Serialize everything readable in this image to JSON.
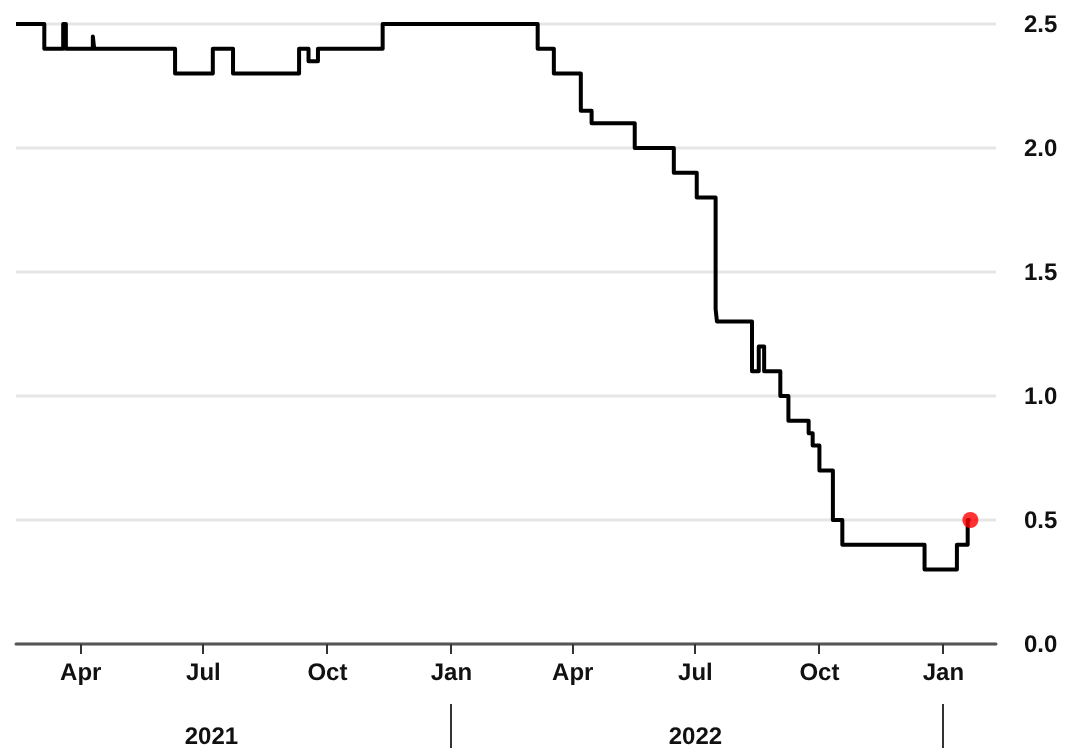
{
  "chart_data": {
    "type": "step",
    "series": [
      {
        "color": "#000000",
        "x": [
          "2021-02-12",
          "2021-03-05",
          "2021-03-19",
          "2021-03-21",
          "2021-04-10",
          "2021-04-11",
          "2021-06-10",
          "2021-07-08",
          "2021-07-23",
          "2021-09-10",
          "2021-09-17",
          "2021-09-24",
          "2021-11-11",
          "2022-03-06",
          "2022-03-18",
          "2022-04-07",
          "2022-04-15",
          "2022-05-17",
          "2022-06-15",
          "2022-07-02",
          "2022-07-16",
          "2022-07-17",
          "2022-08-12",
          "2022-08-17",
          "2022-08-21",
          "2022-09-02",
          "2022-09-08",
          "2022-09-23",
          "2022-09-26",
          "2022-10-01",
          "2022-10-02",
          "2022-10-11",
          "2022-10-14",
          "2022-10-18",
          "2022-12-18",
          "2023-01-11",
          "2023-01-19",
          "2023-01-21"
        ],
        "values": [
          2.5,
          2.4,
          2.5,
          2.4,
          2.45,
          2.4,
          2.3,
          2.4,
          2.3,
          2.4,
          2.35,
          2.4,
          2.5,
          2.4,
          2.3,
          2.15,
          2.1,
          2.0,
          1.9,
          1.8,
          1.35,
          1.3,
          1.1,
          1.2,
          1.1,
          1.0,
          0.9,
          0.85,
          0.8,
          0.7,
          0.7,
          0.5,
          0.5,
          0.4,
          0.3,
          0.4,
          0.5,
          0.5
        ]
      },
      {
        "type": "scatter",
        "color": "#ff0000",
        "marker": "circle",
        "x": [
          "2023-01-21"
        ],
        "values": [
          0.5
        ]
      }
    ],
    "marker": "none",
    "xlim": [
      "2021-02-12",
      "2023-02-09"
    ],
    "xticks": [
      {
        "value": "2021-04-01",
        "label": "Apr"
      },
      {
        "value": "2021-07-01",
        "label": "Jul"
      },
      {
        "value": "2021-10-01",
        "label": "Oct"
      },
      {
        "value": "2022-01-01",
        "label": "Jan"
      },
      {
        "value": "2022-04-01",
        "label": "Apr"
      },
      {
        "value": "2022-07-01",
        "label": "Jul"
      },
      {
        "value": "2022-10-01",
        "label": "Oct"
      },
      {
        "value": "2023-01-01",
        "label": "Jan"
      }
    ],
    "x2lim": [
      "2021-02-12",
      "2023-02-09"
    ],
    "x2ticks": [
      {
        "value": "2021-07-07",
        "label": "2021"
      },
      {
        "value": "2022-01-01",
        "label": null
      },
      {
        "value": "2022-07-01",
        "label": "2022"
      },
      {
        "value": "2023-01-01",
        "label": null
      }
    ],
    "ylim": [
      0,
      2.5
    ],
    "yticks": [
      {
        "value": 0,
        "label": "0.0"
      },
      {
        "value": 0.5,
        "label": "0.5"
      },
      {
        "value": 1,
        "label": "1.0"
      },
      {
        "value": 1.5,
        "label": "1.5"
      },
      {
        "value": 2,
        "label": "2.0"
      },
      {
        "value": 2.5,
        "label": "2.5"
      }
    ],
    "grid": "y"
  }
}
